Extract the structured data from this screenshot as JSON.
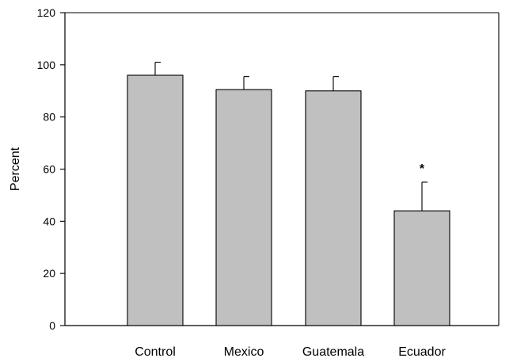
{
  "chart_data": {
    "type": "bar",
    "title": "",
    "xlabel": "",
    "ylabel": "Percent",
    "ylim": [
      0,
      120
    ],
    "yticks": [
      0,
      20,
      40,
      60,
      80,
      100,
      120
    ],
    "grid": false,
    "categories": [
      "Control",
      "Mexico",
      "Guatemala",
      "Ecuador"
    ],
    "values": [
      96,
      90.5,
      90,
      44
    ],
    "errors": [
      5,
      5,
      5.5,
      11
    ],
    "annotations": [
      {
        "category": "Ecuador",
        "text": "*"
      }
    ],
    "colors": {
      "bar": "#c0c0c0",
      "stroke": "#000000"
    }
  }
}
